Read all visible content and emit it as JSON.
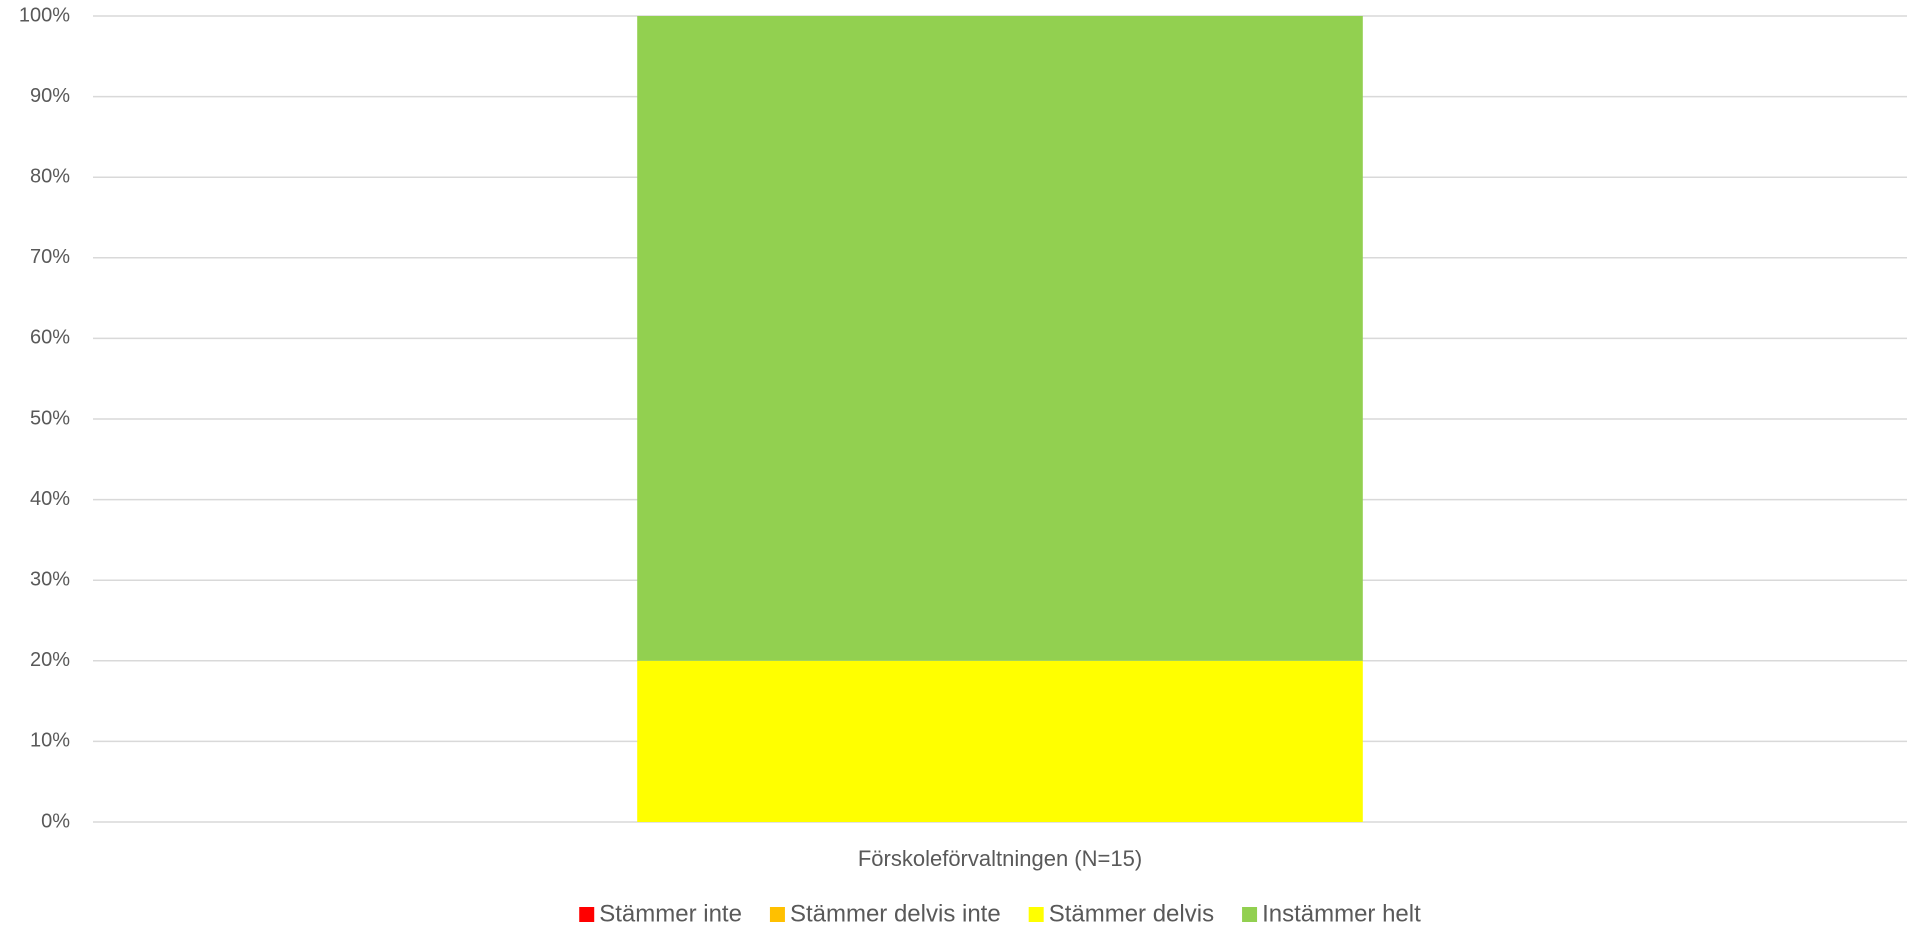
{
  "chart_data": {
    "type": "stacked_bar",
    "categories": [
      "Förskoleförvaltningen (N=15)"
    ],
    "series": [
      {
        "name": "Stämmer inte",
        "color": "#ff0000",
        "values": [
          0
        ]
      },
      {
        "name": "Stämmer delvis inte",
        "color": "#ffc000",
        "values": [
          0
        ]
      },
      {
        "name": "Stämmer delvis",
        "color": "#ffff00",
        "values": [
          20
        ]
      },
      {
        "name": "Instämmer helt",
        "color": "#92d050",
        "values": [
          80
        ]
      }
    ],
    "ylim": [
      0,
      100
    ],
    "yticks": [
      {
        "value": 0,
        "label": "0%"
      },
      {
        "value": 10,
        "label": "10%"
      },
      {
        "value": 20,
        "label": "20%"
      },
      {
        "value": 30,
        "label": "30%"
      },
      {
        "value": 40,
        "label": "40%"
      },
      {
        "value": 50,
        "label": "50%"
      },
      {
        "value": 60,
        "label": "60%"
      },
      {
        "value": 70,
        "label": "70%"
      },
      {
        "value": 80,
        "label": "80%"
      },
      {
        "value": 90,
        "label": "90%"
      },
      {
        "value": 100,
        "label": "100%"
      }
    ],
    "grid": true,
    "legend": "bottom"
  }
}
